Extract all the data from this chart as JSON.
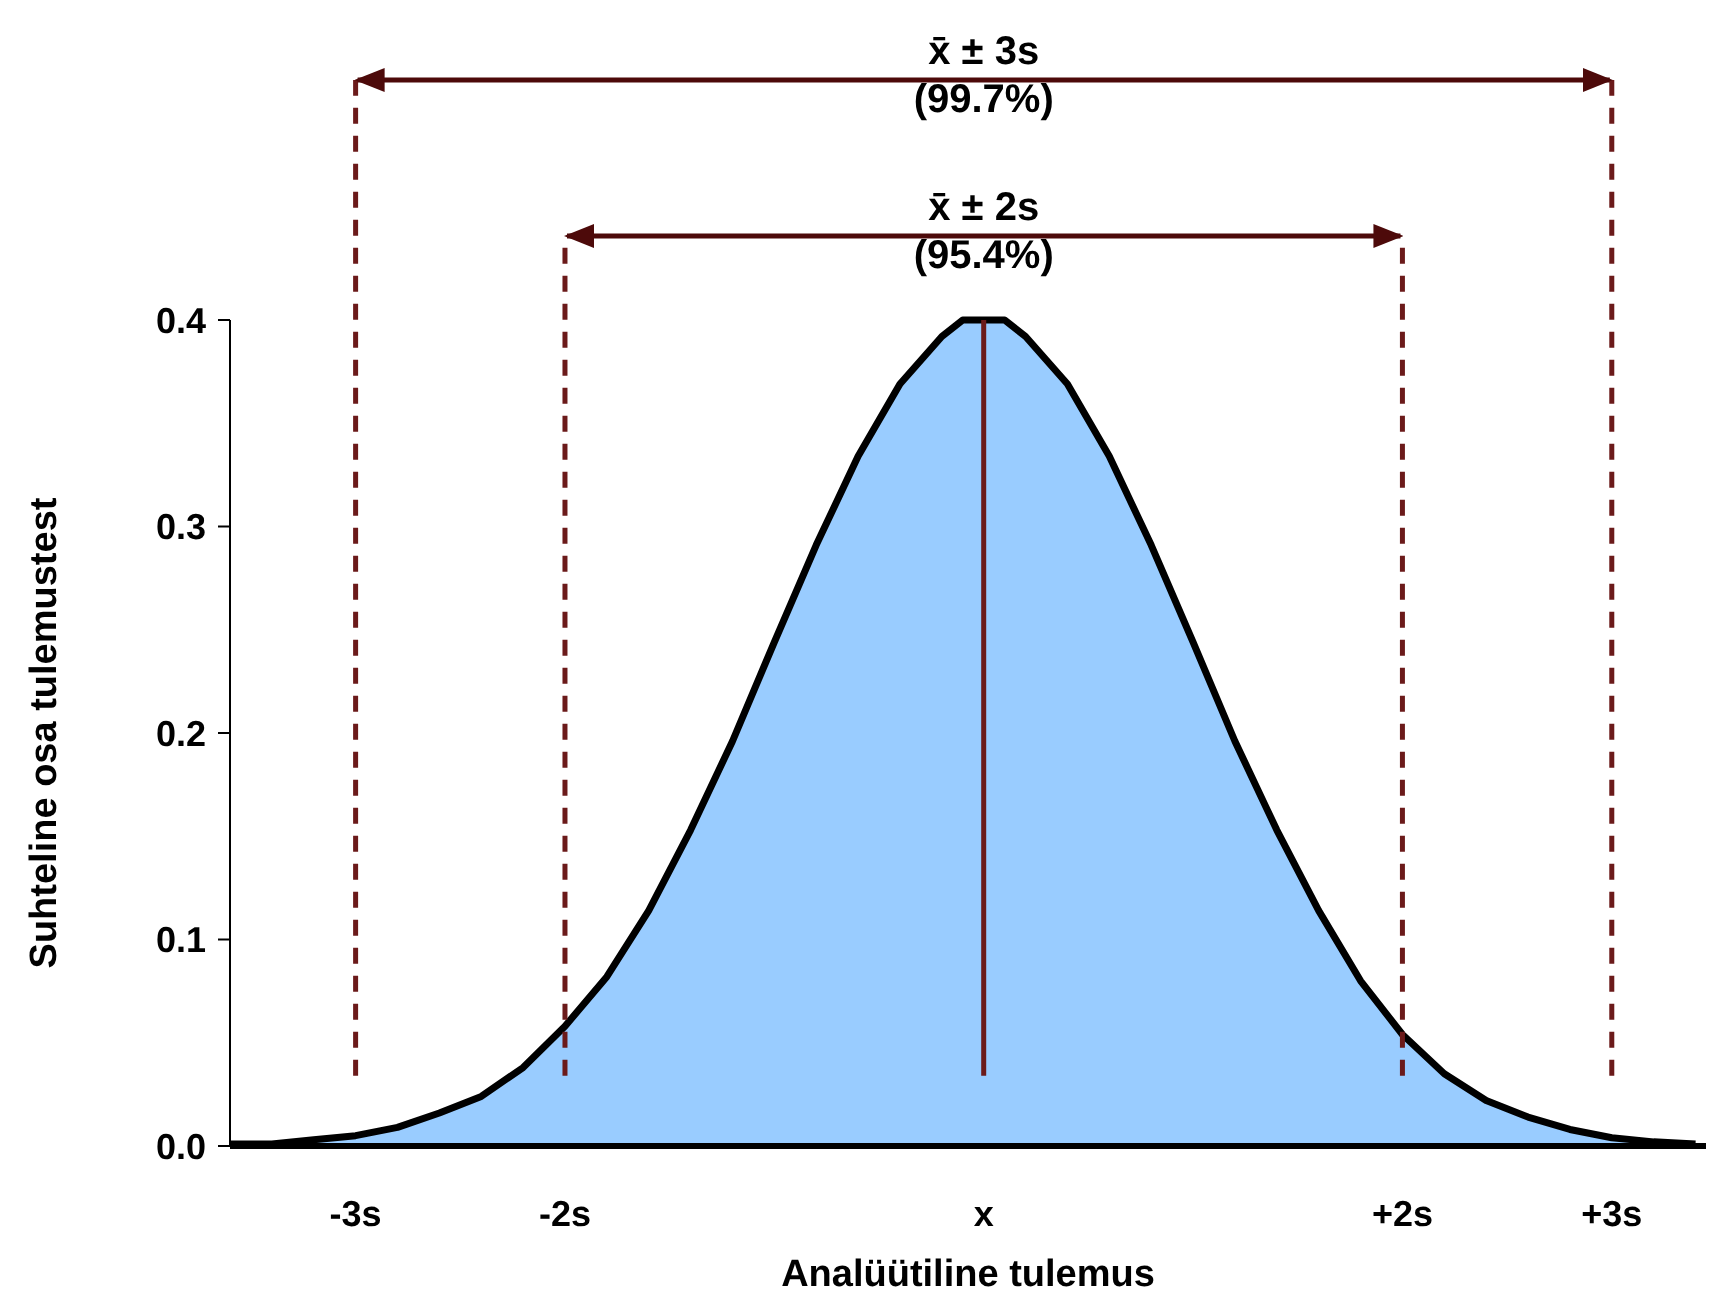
{
  "chart_data": {
    "type": "area",
    "xlabel": "Analüütiline tulemus",
    "ylabel": "Suhteline osa tulemustest",
    "x": [
      -3.6,
      -3.4,
      -3.2,
      -3.0,
      -2.8,
      -2.6,
      -2.4,
      -2.2,
      -2.0,
      -1.8,
      -1.6,
      -1.4,
      -1.2,
      -1.0,
      -0.8,
      -0.6,
      -0.4,
      -0.2,
      -0.1,
      0,
      0.1,
      0.2,
      0.4,
      0.6,
      0.8,
      1.0,
      1.2,
      1.4,
      1.6,
      1.8,
      2.0,
      2.2,
      2.4,
      2.6,
      2.8,
      3.0,
      3.2,
      3.4
    ],
    "series": [
      {
        "color": "#99ccff",
        "values": [
          0.001,
          0.001,
          0.003,
          0.005,
          0.009,
          0.016,
          0.024,
          0.038,
          0.058,
          0.082,
          0.114,
          0.153,
          0.196,
          0.244,
          0.291,
          0.334,
          0.369,
          0.392,
          0.4,
          0.4,
          0.4,
          0.392,
          0.369,
          0.334,
          0.291,
          0.244,
          0.196,
          0.153,
          0.114,
          0.08,
          0.054,
          0.035,
          0.022,
          0.014,
          0.008,
          0.004,
          0.002,
          0.001
        ]
      }
    ],
    "xlim": [
      -3.6,
      3.45
    ],
    "xticks": [
      {
        "value": -3,
        "label": "-3s"
      },
      {
        "value": -2,
        "label": "-2s"
      },
      {
        "value": 0,
        "label": "x"
      },
      {
        "value": 2,
        "label": "+2s"
      },
      {
        "value": 3,
        "label": "+3s"
      }
    ],
    "ylim": [
      0,
      0.4
    ],
    "yticks": [
      {
        "value": 0,
        "label": "0.0"
      },
      0.1,
      0.2,
      0.3,
      0.4
    ],
    "ref_lines": [
      {
        "axis": "x",
        "value": -3,
        "color": "#6b1a1a",
        "line_style": "dashed"
      },
      {
        "axis": "x",
        "value": -2,
        "color": "#6b1a1a",
        "line_style": "dashed"
      },
      {
        "axis": "x",
        "value": 2,
        "color": "#6b1a1a",
        "line_style": "dashed"
      },
      {
        "axis": "x",
        "value": 3,
        "color": "#6b1a1a",
        "line_style": "dashed"
      },
      {
        "axis": "x",
        "value": 0,
        "color": "#6b1a1a",
        "line_style": "solid"
      }
    ],
    "annotations": [
      "x̄ ± 3s\n(99.7%)",
      "x̄ ± 2s\n(95.4%)"
    ],
    "grid": false
  }
}
